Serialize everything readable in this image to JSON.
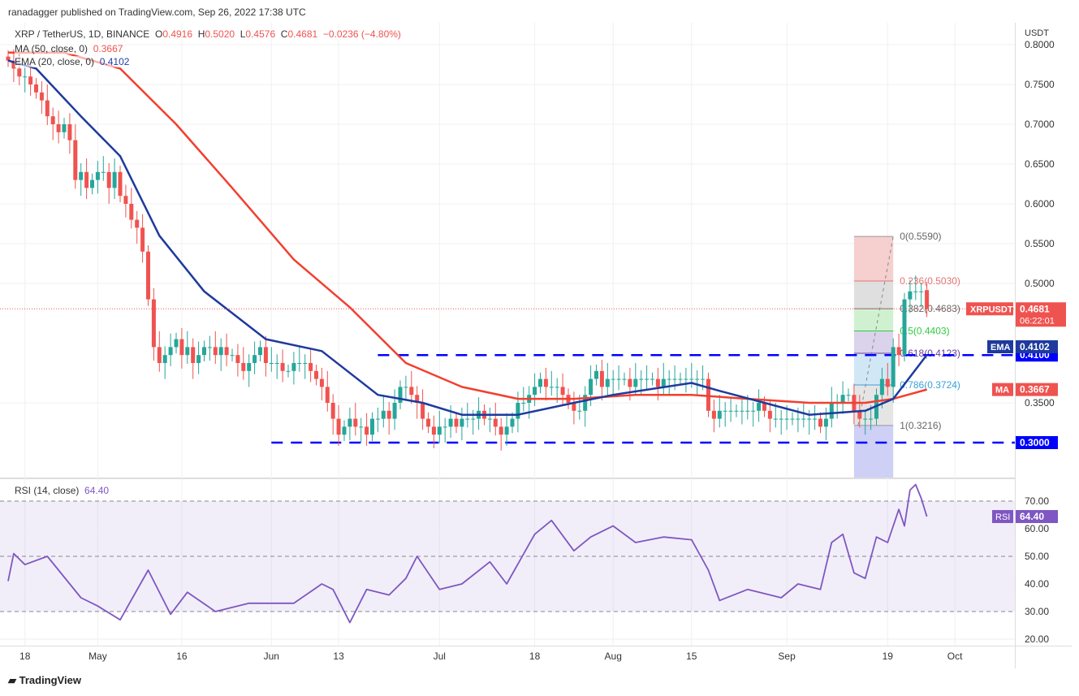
{
  "header": {
    "published": "ranadagger published on TradingView.com, Sep 26, 2022 17:38 UTC",
    "symbol": "XRP / TetherUS, 1D, BINANCE",
    "o_label": "O",
    "o": "0.4916",
    "h_label": "H",
    "h": "0.5020",
    "l_label": "L",
    "l": "0.4576",
    "c_label": "C",
    "c": "0.4681",
    "change": "−0.0236 (−4.80%)",
    "ma_label": "MA (50, close, 0)",
    "ma_value": "0.3667",
    "ema_label": "EMA (20, close, 0)",
    "ema_value": "0.4102",
    "rsi_label": "RSI (14, close)",
    "rsi_value": "64.40"
  },
  "footer": {
    "brand": "TradingView"
  },
  "colors": {
    "up": "#26a69a",
    "down": "#ef5350",
    "ma": "#f23f2f",
    "ema": "#1e3a9e",
    "rsi": "#7e57c2",
    "level": "#0000ff"
  },
  "chart_data": [
    {
      "type": "candlestick",
      "title": "XRP / TetherUS, 1D, BINANCE",
      "currency": "USDT",
      "ylim": [
        0.28,
        0.81
      ],
      "yticks": [
        "0.8000",
        "0.7500",
        "0.7000",
        "0.6500",
        "0.6000",
        "0.5500",
        "0.5000",
        "0.3500"
      ],
      "xticks": [
        {
          "d": "2022-04-18",
          "label": "18"
        },
        {
          "d": "2022-05-01",
          "label": "May"
        },
        {
          "d": "2022-05-16",
          "label": "16"
        },
        {
          "d": "2022-06-01",
          "label": "Jun"
        },
        {
          "d": "2022-06-13",
          "label": "13"
        },
        {
          "d": "2022-07-01",
          "label": "Jul"
        },
        {
          "d": "2022-07-18",
          "label": "18"
        },
        {
          "d": "2022-08-01",
          "label": "Aug"
        },
        {
          "d": "2022-08-15",
          "label": "15"
        },
        {
          "d": "2022-09-01",
          "label": "Sep"
        },
        {
          "d": "2022-09-19",
          "label": "19"
        },
        {
          "d": "2022-10-01",
          "label": "Oct"
        }
      ],
      "start_date": "2022-04-15",
      "closes": [
        0.78,
        0.77,
        0.76,
        0.76,
        0.75,
        0.74,
        0.73,
        0.71,
        0.7,
        0.69,
        0.7,
        0.68,
        0.63,
        0.64,
        0.62,
        0.63,
        0.64,
        0.64,
        0.62,
        0.64,
        0.61,
        0.6,
        0.58,
        0.57,
        0.54,
        0.48,
        0.42,
        0.4,
        0.41,
        0.42,
        0.43,
        0.41,
        0.42,
        0.4,
        0.41,
        0.42,
        0.42,
        0.41,
        0.42,
        0.41,
        0.41,
        0.4,
        0.39,
        0.4,
        0.41,
        0.42,
        0.4,
        0.4,
        0.4,
        0.39,
        0.39,
        0.4,
        0.4,
        0.4,
        0.39,
        0.38,
        0.37,
        0.35,
        0.33,
        0.31,
        0.32,
        0.33,
        0.32,
        0.32,
        0.31,
        0.33,
        0.33,
        0.34,
        0.33,
        0.35,
        0.37,
        0.37,
        0.36,
        0.35,
        0.33,
        0.32,
        0.31,
        0.32,
        0.32,
        0.33,
        0.32,
        0.33,
        0.33,
        0.33,
        0.34,
        0.33,
        0.33,
        0.32,
        0.31,
        0.32,
        0.33,
        0.35,
        0.35,
        0.36,
        0.37,
        0.38,
        0.37,
        0.37,
        0.37,
        0.36,
        0.35,
        0.34,
        0.34,
        0.36,
        0.38,
        0.39,
        0.37,
        0.38,
        0.38,
        0.38,
        0.38,
        0.37,
        0.38,
        0.38,
        0.38,
        0.38,
        0.37,
        0.38,
        0.38,
        0.38,
        0.38,
        0.38,
        0.38,
        0.38,
        0.38,
        0.34,
        0.33,
        0.34,
        0.34,
        0.34,
        0.34,
        0.34,
        0.34,
        0.34,
        0.35,
        0.34,
        0.33,
        0.33,
        0.33,
        0.33,
        0.33,
        0.33,
        0.33,
        0.33,
        0.33,
        0.32,
        0.33,
        0.35,
        0.35,
        0.36,
        0.36,
        0.34,
        0.33,
        0.33,
        0.33,
        0.36,
        0.38,
        0.37,
        0.42,
        0.41,
        0.48,
        0.49,
        0.49,
        0.49,
        0.4681
      ],
      "last": {
        "open": 0.4916,
        "high": 0.502,
        "low": 0.4576,
        "close": 0.4681
      },
      "series": [
        {
          "name": "MA",
          "points": [
            [
              "2022-04-15",
              0.79
            ],
            [
              "2022-04-25",
              0.79
            ],
            [
              "2022-05-05",
              0.77
            ],
            [
              "2022-05-15",
              0.7
            ],
            [
              "2022-05-25",
              0.62
            ],
            [
              "2022-06-05",
              0.53
            ],
            [
              "2022-06-15",
              0.47
            ],
            [
              "2022-06-25",
              0.4
            ],
            [
              "2022-07-05",
              0.37
            ],
            [
              "2022-07-15",
              0.355
            ],
            [
              "2022-07-25",
              0.355
            ],
            [
              "2022-08-05",
              0.36
            ],
            [
              "2022-08-15",
              0.36
            ],
            [
              "2022-08-25",
              0.355
            ],
            [
              "2022-09-05",
              0.35
            ],
            [
              "2022-09-15",
              0.35
            ],
            [
              "2022-09-20",
              0.355
            ],
            [
              "2022-09-26",
              0.3667
            ]
          ]
        },
        {
          "name": "EMA",
          "points": [
            [
              "2022-04-15",
              0.78
            ],
            [
              "2022-04-20",
              0.77
            ],
            [
              "2022-04-28",
              0.71
            ],
            [
              "2022-05-05",
              0.66
            ],
            [
              "2022-05-12",
              0.56
            ],
            [
              "2022-05-20",
              0.49
            ],
            [
              "2022-05-31",
              0.43
            ],
            [
              "2022-06-10",
              0.415
            ],
            [
              "2022-06-20",
              0.36
            ],
            [
              "2022-06-28",
              0.35
            ],
            [
              "2022-07-05",
              0.335
            ],
            [
              "2022-07-15",
              0.335
            ],
            [
              "2022-07-25",
              0.35
            ],
            [
              "2022-08-01",
              0.36
            ],
            [
              "2022-08-15",
              0.375
            ],
            [
              "2022-08-20",
              0.365
            ],
            [
              "2022-08-28",
              0.35
            ],
            [
              "2022-09-05",
              0.335
            ],
            [
              "2022-09-15",
              0.34
            ],
            [
              "2022-09-20",
              0.355
            ],
            [
              "2022-09-26",
              0.4102
            ]
          ]
        }
      ],
      "levels": [
        {
          "value": 0.41,
          "label": "0.4100",
          "from": "2022-06-20"
        },
        {
          "value": 0.3,
          "label": "0.3000",
          "from": "2022-06-01"
        }
      ],
      "fib": {
        "from": "2022-09-13",
        "to": "2022-09-20",
        "levels": [
          {
            "r": "0",
            "v": 0.559,
            "label": "0(0.5590)",
            "fill": "#f4c7c7",
            "line": "#999"
          },
          {
            "r": "0.236",
            "v": 0.503,
            "label": "0.236(0.5030)",
            "fill": "#d9d9d9",
            "line": "#e57373"
          },
          {
            "r": "0.382",
            "v": 0.4683,
            "label": "0.382(0.4683)",
            "fill": "#c8eec8",
            "line": "#777"
          },
          {
            "r": "0.5",
            "v": 0.4403,
            "label": "0.5(0.4403)",
            "fill": "#d5cbe8",
            "line": "#2ecc40"
          },
          {
            "r": "0.618",
            "v": 0.4123,
            "label": "0.618(0.4123)",
            "fill": "#c9e3f5",
            "line": "#6a3d9a"
          },
          {
            "r": "0.786",
            "v": 0.3724,
            "label": "0.786(0.3724)",
            "fill": "#e0e0e0",
            "line": "#3aa0d8"
          },
          {
            "r": "1",
            "v": 0.3216,
            "label": "1(0.3216)",
            "fill": "#c5c8f5",
            "line": "#999"
          }
        ]
      },
      "badges": {
        "symbol": "XRPUSDT",
        "price": "0.4681",
        "countdown": "06:22:01",
        "ema": "EMA",
        "ema_value": "0.4102",
        "ma": "MA",
        "ma_value": "0.3667"
      }
    },
    {
      "type": "line",
      "title": "RSI (14, close)",
      "ylim": [
        17,
        78
      ],
      "yticks": [
        "70.00",
        "60.00",
        "50.00",
        "40.00",
        "30.00",
        "20.00"
      ],
      "band": [
        30,
        70
      ],
      "points": [
        [
          "2022-04-15",
          41
        ],
        [
          "2022-04-16",
          51
        ],
        [
          "2022-04-18",
          47
        ],
        [
          "2022-04-22",
          50
        ],
        [
          "2022-04-28",
          35
        ],
        [
          "2022-05-01",
          32
        ],
        [
          "2022-05-05",
          27
        ],
        [
          "2022-05-10",
          45
        ],
        [
          "2022-05-14",
          29
        ],
        [
          "2022-05-17",
          37
        ],
        [
          "2022-05-22",
          30
        ],
        [
          "2022-05-28",
          33
        ],
        [
          "2022-06-05",
          33
        ],
        [
          "2022-06-10",
          40
        ],
        [
          "2022-06-12",
          38
        ],
        [
          "2022-06-15",
          26
        ],
        [
          "2022-06-18",
          38
        ],
        [
          "2022-06-22",
          36
        ],
        [
          "2022-06-25",
          42
        ],
        [
          "2022-06-27",
          50
        ],
        [
          "2022-07-01",
          38
        ],
        [
          "2022-07-05",
          40
        ],
        [
          "2022-07-10",
          48
        ],
        [
          "2022-07-13",
          40
        ],
        [
          "2022-07-18",
          58
        ],
        [
          "2022-07-21",
          63
        ],
        [
          "2022-07-25",
          52
        ],
        [
          "2022-07-28",
          57
        ],
        [
          "2022-08-01",
          61
        ],
        [
          "2022-08-05",
          55
        ],
        [
          "2022-08-10",
          57
        ],
        [
          "2022-08-15",
          56
        ],
        [
          "2022-08-18",
          45
        ],
        [
          "2022-08-20",
          34
        ],
        [
          "2022-08-25",
          38
        ],
        [
          "2022-08-31",
          35
        ],
        [
          "2022-09-03",
          40
        ],
        [
          "2022-09-07",
          38
        ],
        [
          "2022-09-09",
          55
        ],
        [
          "2022-09-11",
          58
        ],
        [
          "2022-09-13",
          44
        ],
        [
          "2022-09-15",
          42
        ],
        [
          "2022-09-17",
          57
        ],
        [
          "2022-09-19",
          55
        ],
        [
          "2022-09-21",
          67
        ],
        [
          "2022-09-22",
          61
        ],
        [
          "2022-09-23",
          74
        ],
        [
          "2022-09-24",
          76
        ],
        [
          "2022-09-25",
          71
        ],
        [
          "2022-09-26",
          64.4
        ]
      ],
      "badge": {
        "label": "RSI",
        "value": "64.40"
      }
    }
  ]
}
